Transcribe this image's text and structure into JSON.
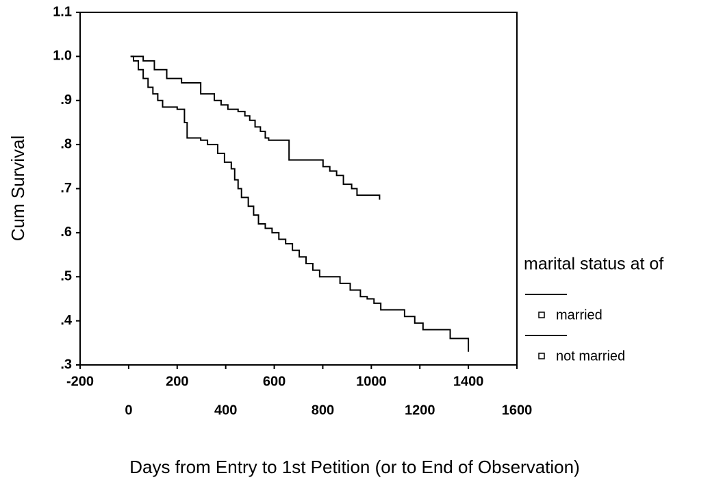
{
  "chart_data": {
    "type": "step",
    "x_label": "Days from Entry to 1st Petition (or to End of Observation)",
    "y_label": "Cum Survival",
    "legend_title": "marital status at of",
    "xlim": [
      -200,
      1600
    ],
    "xticks": [
      -200,
      0,
      200,
      400,
      600,
      800,
      1000,
      1200,
      1400,
      1600
    ],
    "ylim": [
      0.3,
      1.1
    ],
    "yticks": [
      {
        "value": 0.3,
        "label": ".3"
      },
      {
        "value": 0.4,
        "label": ".4"
      },
      {
        "value": 0.5,
        "label": ".5"
      },
      {
        "value": 0.6,
        "label": ".6"
      },
      {
        "value": 0.7,
        "label": ".7"
      },
      {
        "value": 0.8,
        "label": ".8"
      },
      {
        "value": 0.9,
        "label": ".9"
      },
      {
        "value": 1.0,
        "label": "1.0"
      },
      1.1
    ],
    "series": [
      {
        "name": "married",
        "color": "#000000",
        "x": [
          8,
          60,
          106,
          157,
          218,
          297,
          353,
          381,
          409,
          451,
          479,
          499,
          521,
          543,
          563,
          577,
          661,
          801,
          829,
          857,
          885,
          919,
          941,
          1034
        ],
        "values": [
          1.0,
          0.99,
          0.97,
          0.95,
          0.94,
          0.915,
          0.9,
          0.89,
          0.88,
          0.875,
          0.865,
          0.855,
          0.84,
          0.83,
          0.815,
          0.81,
          0.765,
          0.75,
          0.74,
          0.73,
          0.71,
          0.7,
          0.685,
          0.675
        ]
      },
      {
        "name": "not married",
        "color": "#000000",
        "x": [
          8,
          20,
          40,
          60,
          80,
          100,
          120,
          140,
          200,
          230,
          241,
          297,
          325,
          367,
          395,
          423,
          437,
          451,
          465,
          493,
          515,
          535,
          563,
          591,
          619,
          647,
          675,
          703,
          731,
          759,
          787,
          871,
          913,
          955,
          983,
          1011,
          1039,
          1137,
          1179,
          1213,
          1325,
          1400
        ],
        "values": [
          1.0,
          0.99,
          0.97,
          0.95,
          0.93,
          0.915,
          0.9,
          0.885,
          0.88,
          0.85,
          0.815,
          0.81,
          0.8,
          0.78,
          0.76,
          0.745,
          0.72,
          0.7,
          0.68,
          0.66,
          0.64,
          0.62,
          0.61,
          0.6,
          0.585,
          0.575,
          0.56,
          0.545,
          0.53,
          0.515,
          0.5,
          0.485,
          0.47,
          0.455,
          0.45,
          0.44,
          0.425,
          0.41,
          0.395,
          0.38,
          0.36,
          0.33
        ]
      }
    ]
  }
}
